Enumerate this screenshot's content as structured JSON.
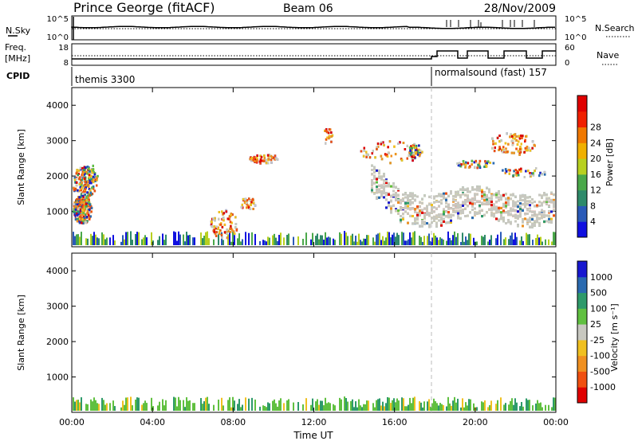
{
  "header": {
    "station": "Prince George (fitACF)",
    "beam": "Beam 06",
    "date": "28/Nov/2009"
  },
  "panels": {
    "nsky": {
      "label": "N.Sky",
      "tick_top": "10^5",
      "tick_bottom": "10^0",
      "right_tick_top": "10^5",
      "right_tick_bottom": "10^0",
      "right_label": "N.Search"
    },
    "freq": {
      "label_line1": "Freq.",
      "label_line2": "[MHz]",
      "tick_top": "18",
      "tick_bottom": "8",
      "right_tick_top": "60",
      "right_tick_bottom": "0",
      "right_label": "Nave"
    },
    "cpid": {
      "label": "CPID",
      "mode1": "themis 3300",
      "mode2": "normalsound (fast) 157"
    }
  },
  "chart_data": [
    {
      "type": "heatmap",
      "name": "power",
      "ylabel": "Slant Range [km]",
      "y_ticks": [
        "1000",
        "2000",
        "3000",
        "4000"
      ],
      "x_ticks": [
        "00:00",
        "04:00",
        "08:00",
        "12:00",
        "16:00",
        "20:00",
        "00:00"
      ],
      "colorbar": {
        "label": "Power [dB]",
        "ticks": [
          "4",
          "8",
          "12",
          "16",
          "20",
          "24",
          "28"
        ],
        "colors": [
          "#1010e0",
          "#2a5ab8",
          "#2e8a6a",
          "#4aa84a",
          "#b8d020",
          "#f0b000",
          "#f07800",
          "#f02000",
          "#e00000"
        ]
      }
    },
    {
      "type": "heatmap",
      "name": "velocity",
      "ylabel": "Slant Range [km]",
      "y_ticks": [
        "1000",
        "2000",
        "3000",
        "4000"
      ],
      "x_ticks": [
        "00:00",
        "04:00",
        "08:00",
        "12:00",
        "16:00",
        "20:00",
        "00:00"
      ],
      "xlabel": "Time UT",
      "colorbar": {
        "label": "Velocity [m s⁻¹]",
        "ticks": [
          "1000",
          "500",
          "100",
          "25",
          "-25",
          "-100",
          "-500",
          "-1000"
        ],
        "colors": [
          "#1818d0",
          "#2a6ab0",
          "#2e9a6a",
          "#60c040",
          "#c8c8c0",
          "#f0c020",
          "#f09020",
          "#f05010",
          "#e00000"
        ]
      }
    }
  ]
}
